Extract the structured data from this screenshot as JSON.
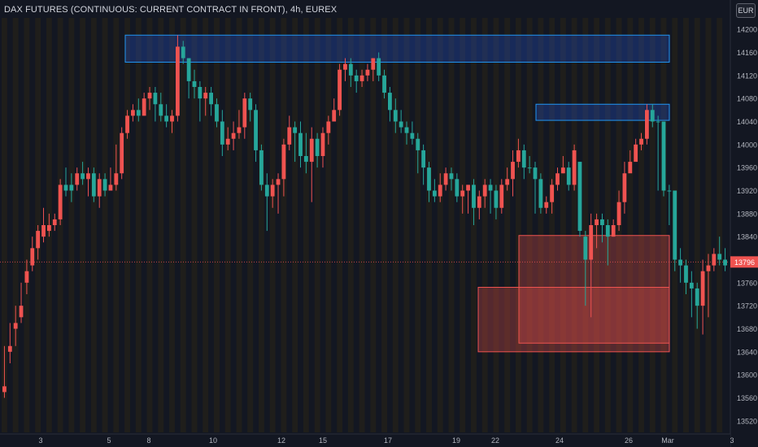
{
  "header": {
    "title": "DAX FUTURES (CONTINUOUS: CURRENT CONTRACT IN FRONT), 4h, EUREX",
    "currency": "EUR"
  },
  "colors": {
    "background": "#131722",
    "up": "#26a69a",
    "down": "#ef5350",
    "session_band": "#2a2416",
    "blue_zone": "#2962ff",
    "red_zone": "#ef5350",
    "price_line": "#ef5350"
  },
  "chart_data": {
    "type": "candlestick",
    "ylim": [
      13500,
      14220
    ],
    "y_ticks": [
      14200,
      14160,
      14120,
      14080,
      14040,
      14000,
      13960,
      13920,
      13880,
      13840,
      13800,
      13760,
      13720,
      13680,
      13640,
      13600,
      13560,
      13520
    ],
    "x_tick_labels": [
      "3",
      "5",
      "8",
      "10",
      "12",
      "15",
      "17",
      "19",
      "22",
      "24",
      "26",
      "Mar",
      "3"
    ],
    "last_price": 13796,
    "last_price_label": "13796",
    "candles": [
      [
        13580,
        13570,
        13650,
        13560
      ],
      [
        13650,
        13640,
        13690,
        13620
      ],
      [
        13690,
        13680,
        13720,
        13650
      ],
      [
        13720,
        13700,
        13760,
        13690
      ],
      [
        13780,
        13760,
        13800,
        13740
      ],
      [
        13820,
        13790,
        13840,
        13780
      ],
      [
        13850,
        13820,
        13860,
        13800
      ],
      [
        13860,
        13840,
        13890,
        13830
      ],
      [
        13860,
        13850,
        13880,
        13840
      ],
      [
        13870,
        13860,
        13880,
        13850
      ],
      [
        13930,
        13870,
        13940,
        13860
      ],
      [
        13920,
        13930,
        13960,
        13910
      ],
      [
        13920,
        13930,
        13950,
        13900
      ],
      [
        13950,
        13930,
        13960,
        13920
      ],
      [
        13940,
        13950,
        13970,
        13930
      ],
      [
        13950,
        13940,
        13960,
        13910
      ],
      [
        13910,
        13950,
        13960,
        13900
      ],
      [
        13940,
        13910,
        13950,
        13890
      ],
      [
        13920,
        13940,
        13950,
        13910
      ],
      [
        13930,
        13920,
        13960,
        13920
      ],
      [
        13950,
        13930,
        14000,
        13920
      ],
      [
        14020,
        13950,
        14030,
        13940
      ],
      [
        14050,
        14020,
        14060,
        14010
      ],
      [
        14060,
        14050,
        14070,
        14040
      ],
      [
        14050,
        14060,
        14080,
        14040
      ],
      [
        14080,
        14050,
        14090,
        14050
      ],
      [
        14090,
        14080,
        14100,
        14060
      ],
      [
        14070,
        14090,
        14100,
        14040
      ],
      [
        14050,
        14070,
        14090,
        14040
      ],
      [
        14040,
        14050,
        14070,
        14030
      ],
      [
        14050,
        14040,
        14060,
        14020
      ],
      [
        14170,
        14050,
        14190,
        14040
      ],
      [
        14150,
        14170,
        14180,
        14140
      ],
      [
        14110,
        14150,
        14150,
        14080
      ],
      [
        14100,
        14110,
        14130,
        14080
      ],
      [
        14080,
        14100,
        14110,
        14040
      ],
      [
        14090,
        14080,
        14100,
        14050
      ],
      [
        14070,
        14090,
        14100,
        14050
      ],
      [
        14040,
        14070,
        14080,
        14030
      ],
      [
        14000,
        14040,
        14060,
        13980
      ],
      [
        14010,
        14000,
        14030,
        13990
      ],
      [
        14020,
        14010,
        14040,
        13990
      ],
      [
        14030,
        14020,
        14060,
        14010
      ],
      [
        14080,
        14030,
        14090,
        14010
      ],
      [
        14060,
        14080,
        14090,
        14040
      ],
      [
        13990,
        14060,
        14070,
        13970
      ],
      [
        13930,
        13990,
        14000,
        13920
      ],
      [
        13910,
        13930,
        13950,
        13850
      ],
      [
        13930,
        13910,
        13940,
        13890
      ],
      [
        13940,
        13930,
        13950,
        13880
      ],
      [
        14000,
        13940,
        14010,
        13910
      ],
      [
        14030,
        14000,
        14050,
        13990
      ],
      [
        14020,
        14030,
        14040,
        13970
      ],
      [
        13980,
        14020,
        14040,
        13960
      ],
      [
        13970,
        13980,
        14020,
        13950
      ],
      [
        14010,
        13970,
        14030,
        13900
      ],
      [
        13980,
        14010,
        14020,
        13960
      ],
      [
        14020,
        13980,
        14030,
        13960
      ],
      [
        14040,
        14020,
        14050,
        14000
      ],
      [
        14060,
        14040,
        14080,
        14040
      ],
      [
        14130,
        14060,
        14140,
        14050
      ],
      [
        14140,
        14130,
        14150,
        14110
      ],
      [
        14120,
        14140,
        14150,
        14100
      ],
      [
        14110,
        14120,
        14130,
        14090
      ],
      [
        14120,
        14110,
        14130,
        14100
      ],
      [
        14130,
        14120,
        14140,
        14110
      ],
      [
        14150,
        14130,
        14150,
        14110
      ],
      [
        14120,
        14150,
        14160,
        14110
      ],
      [
        14090,
        14120,
        14130,
        14080
      ],
      [
        14060,
        14090,
        14100,
        14040
      ],
      [
        14040,
        14060,
        14080,
        14020
      ],
      [
        14030,
        14040,
        14060,
        14020
      ],
      [
        14020,
        14030,
        14040,
        14000
      ],
      [
        14010,
        14020,
        14040,
        14000
      ],
      [
        13990,
        14010,
        14020,
        13950
      ],
      [
        13960,
        13990,
        14000,
        13930
      ],
      [
        13920,
        13960,
        13970,
        13900
      ],
      [
        13910,
        13920,
        13940,
        13900
      ],
      [
        13930,
        13910,
        13950,
        13900
      ],
      [
        13950,
        13930,
        13960,
        13920
      ],
      [
        13940,
        13950,
        13960,
        13920
      ],
      [
        13910,
        13940,
        13950,
        13900
      ],
      [
        13920,
        13910,
        13930,
        13880
      ],
      [
        13930,
        13920,
        13930,
        13880
      ],
      [
        13890,
        13930,
        13940,
        13860
      ],
      [
        13910,
        13890,
        13920,
        13870
      ],
      [
        13930,
        13910,
        13940,
        13890
      ],
      [
        13920,
        13930,
        13940,
        13880
      ],
      [
        13890,
        13920,
        13930,
        13870
      ],
      [
        13930,
        13890,
        13940,
        13880
      ],
      [
        13940,
        13930,
        13960,
        13920
      ],
      [
        13970,
        13940,
        13990,
        13910
      ],
      [
        13990,
        13970,
        14010,
        13960
      ],
      [
        13960,
        13990,
        14000,
        13940
      ],
      [
        13960,
        13960,
        13980,
        13950
      ],
      [
        13940,
        13960,
        13970,
        13880
      ],
      [
        13890,
        13940,
        13950,
        13880
      ],
      [
        13900,
        13890,
        13910,
        13880
      ],
      [
        13930,
        13900,
        13940,
        13880
      ],
      [
        13950,
        13930,
        13960,
        13920
      ],
      [
        13960,
        13950,
        13980,
        13950
      ],
      [
        13930,
        13960,
        13970,
        13920
      ],
      [
        13990,
        13930,
        14000,
        13920
      ],
      [
        13850,
        13970,
        13970,
        13840
      ],
      [
        13800,
        13840,
        13850,
        13720
      ],
      [
        13860,
        13800,
        13880,
        13700
      ],
      [
        13870,
        13860,
        13880,
        13820
      ],
      [
        13860,
        13870,
        13880,
        13830
      ],
      [
        13840,
        13860,
        13870,
        13790
      ],
      [
        13860,
        13840,
        13870,
        13840
      ],
      [
        13900,
        13860,
        13920,
        13850
      ],
      [
        13950,
        13900,
        13970,
        13880
      ],
      [
        13970,
        13950,
        13990,
        13960
      ],
      [
        14000,
        13970,
        14010,
        13990
      ],
      [
        14010,
        14000,
        14020,
        13990
      ],
      [
        14060,
        14010,
        14070,
        14000
      ],
      [
        14040,
        14060,
        14070,
        14030
      ],
      [
        14040,
        14040,
        14050,
        13920
      ],
      [
        13920,
        14040,
        14040,
        13910
      ],
      [
        13920,
        13920,
        13930,
        13860
      ],
      [
        13800,
        13920,
        13920,
        13780
      ],
      [
        13790,
        13800,
        13820,
        13760
      ],
      [
        13760,
        13790,
        13800,
        13740
      ],
      [
        13750,
        13760,
        13780,
        13700
      ],
      [
        13720,
        13750,
        13760,
        13680
      ],
      [
        13780,
        13720,
        13800,
        13670
      ],
      [
        13790,
        13780,
        13810,
        13700
      ],
      [
        13810,
        13790,
        13820,
        13780
      ],
      [
        13800,
        13810,
        13840,
        13790
      ],
      [
        13790,
        13800,
        13820,
        13780
      ]
    ],
    "zones": [
      {
        "type": "resistance",
        "price_top": 14190,
        "price_bottom": 14143
      },
      {
        "type": "resistance",
        "price_top": 14070,
        "price_bottom": 14042
      },
      {
        "type": "support",
        "price_top": 13842,
        "price_bottom": 13655
      },
      {
        "type": "support",
        "price_top": 13752,
        "price_bottom": 13640
      }
    ]
  }
}
